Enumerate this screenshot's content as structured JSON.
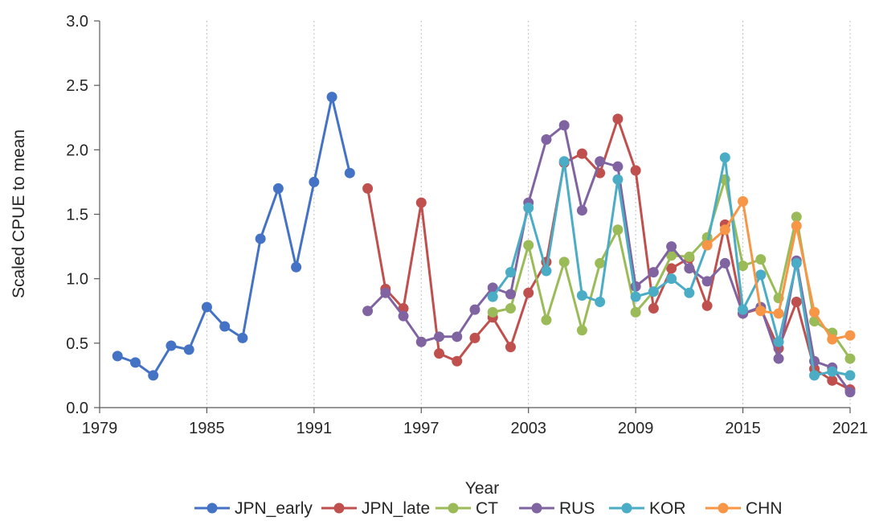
{
  "chart_data": {
    "type": "line",
    "title": "",
    "xlabel": "Year",
    "ylabel": "Scaled CPUE to mean",
    "xlim": [
      1979,
      2021
    ],
    "ylim": [
      0.0,
      3.0
    ],
    "x_ticks": [
      1979,
      1985,
      1991,
      1997,
      2003,
      2009,
      2015,
      2021
    ],
    "x_tick_labels": [
      "1979",
      "1985",
      "1991",
      "1997",
      "2003",
      "2009",
      "2015",
      "2021"
    ],
    "y_ticks": [
      0.0,
      0.5,
      1.0,
      1.5,
      2.0,
      2.5,
      3.0
    ],
    "y_tick_labels": [
      "0.0",
      "0.5",
      "1.0",
      "1.5",
      "2.0",
      "2.5",
      "3.0"
    ],
    "grid": "vertical dotted",
    "legend_position": "bottom",
    "series": [
      {
        "name": "JPN_early",
        "color": "#4472c4",
        "points": [
          [
            1980,
            0.4
          ],
          [
            1981,
            0.35
          ],
          [
            1982,
            0.25
          ],
          [
            1983,
            0.48
          ],
          [
            1984,
            0.45
          ],
          [
            1985,
            0.78
          ],
          [
            1986,
            0.63
          ],
          [
            1987,
            0.54
          ],
          [
            1988,
            1.31
          ],
          [
            1989,
            1.7
          ],
          [
            1990,
            1.09
          ],
          [
            1991,
            1.75
          ],
          [
            1992,
            2.41
          ],
          [
            1993,
            1.82
          ]
        ]
      },
      {
        "name": "JPN_late",
        "color": "#c0504d",
        "points": [
          [
            1994,
            1.7
          ],
          [
            1995,
            0.92
          ],
          [
            1996,
            0.77
          ],
          [
            1997,
            1.59
          ],
          [
            1998,
            0.42
          ],
          [
            1999,
            0.36
          ],
          [
            2000,
            0.54
          ],
          [
            2001,
            0.7
          ],
          [
            2002,
            0.47
          ],
          [
            2003,
            0.89
          ],
          [
            2004,
            1.13
          ],
          [
            2005,
            1.9
          ],
          [
            2006,
            1.97
          ],
          [
            2007,
            1.82
          ],
          [
            2008,
            2.24
          ],
          [
            2009,
            1.84
          ],
          [
            2010,
            0.77
          ],
          [
            2011,
            1.08
          ],
          [
            2012,
            1.16
          ],
          [
            2013,
            0.79
          ],
          [
            2014,
            1.42
          ],
          [
            2015,
            0.73
          ],
          [
            2016,
            0.77
          ],
          [
            2017,
            0.46
          ],
          [
            2018,
            0.82
          ],
          [
            2019,
            0.3
          ],
          [
            2020,
            0.21
          ],
          [
            2021,
            0.14
          ]
        ]
      },
      {
        "name": "CT",
        "color": "#9bbb59",
        "points": [
          [
            2001,
            0.74
          ],
          [
            2002,
            0.77
          ],
          [
            2003,
            1.26
          ],
          [
            2004,
            0.68
          ],
          [
            2005,
            1.13
          ],
          [
            2006,
            0.6
          ],
          [
            2007,
            1.12
          ],
          [
            2008,
            1.38
          ],
          [
            2009,
            0.74
          ],
          [
            2010,
            0.9
          ],
          [
            2011,
            1.18
          ],
          [
            2012,
            1.17
          ],
          [
            2013,
            1.32
          ],
          [
            2014,
            1.77
          ],
          [
            2015,
            1.1
          ],
          [
            2016,
            1.15
          ],
          [
            2017,
            0.85
          ],
          [
            2018,
            1.48
          ],
          [
            2019,
            0.67
          ],
          [
            2020,
            0.58
          ],
          [
            2021,
            0.38
          ]
        ]
      },
      {
        "name": "RUS",
        "color": "#8064a2",
        "points": [
          [
            1994,
            0.75
          ],
          [
            1995,
            0.89
          ],
          [
            1996,
            0.71
          ],
          [
            1997,
            0.51
          ],
          [
            1998,
            0.55
          ],
          [
            1999,
            0.55
          ],
          [
            2000,
            0.76
          ],
          [
            2001,
            0.93
          ],
          [
            2002,
            0.88
          ],
          [
            2003,
            1.59
          ],
          [
            2004,
            2.08
          ],
          [
            2005,
            2.19
          ],
          [
            2006,
            1.53
          ],
          [
            2007,
            1.91
          ],
          [
            2008,
            1.87
          ],
          [
            2009,
            0.94
          ],
          [
            2010,
            1.05
          ],
          [
            2011,
            1.25
          ],
          [
            2012,
            1.08
          ],
          [
            2013,
            0.98
          ],
          [
            2014,
            1.12
          ],
          [
            2015,
            0.73
          ],
          [
            2016,
            0.78
          ],
          [
            2017,
            0.38
          ],
          [
            2018,
            1.14
          ],
          [
            2019,
            0.36
          ],
          [
            2020,
            0.31
          ],
          [
            2021,
            0.12
          ]
        ]
      },
      {
        "name": "KOR",
        "color": "#4bacc6",
        "points": [
          [
            2001,
            0.86
          ],
          [
            2002,
            1.05
          ],
          [
            2003,
            1.55
          ],
          [
            2004,
            1.06
          ],
          [
            2005,
            1.91
          ],
          [
            2006,
            0.87
          ],
          [
            2007,
            0.82
          ],
          [
            2008,
            1.77
          ],
          [
            2009,
            0.86
          ],
          [
            2010,
            0.9
          ],
          [
            2011,
            1.0
          ],
          [
            2012,
            0.89
          ],
          [
            2013,
            1.26
          ],
          [
            2014,
            1.94
          ],
          [
            2015,
            0.76
          ],
          [
            2016,
            1.03
          ],
          [
            2017,
            0.51
          ],
          [
            2018,
            1.12
          ],
          [
            2019,
            0.25
          ],
          [
            2020,
            0.28
          ],
          [
            2021,
            0.25
          ]
        ]
      },
      {
        "name": "CHN",
        "color": "#f79646",
        "points": [
          [
            2013,
            1.26
          ],
          [
            2014,
            1.38
          ],
          [
            2015,
            1.6
          ],
          [
            2016,
            0.75
          ],
          [
            2017,
            0.73
          ],
          [
            2018,
            1.41
          ],
          [
            2019,
            0.74
          ],
          [
            2020,
            0.53
          ],
          [
            2021,
            0.56
          ]
        ]
      }
    ]
  }
}
